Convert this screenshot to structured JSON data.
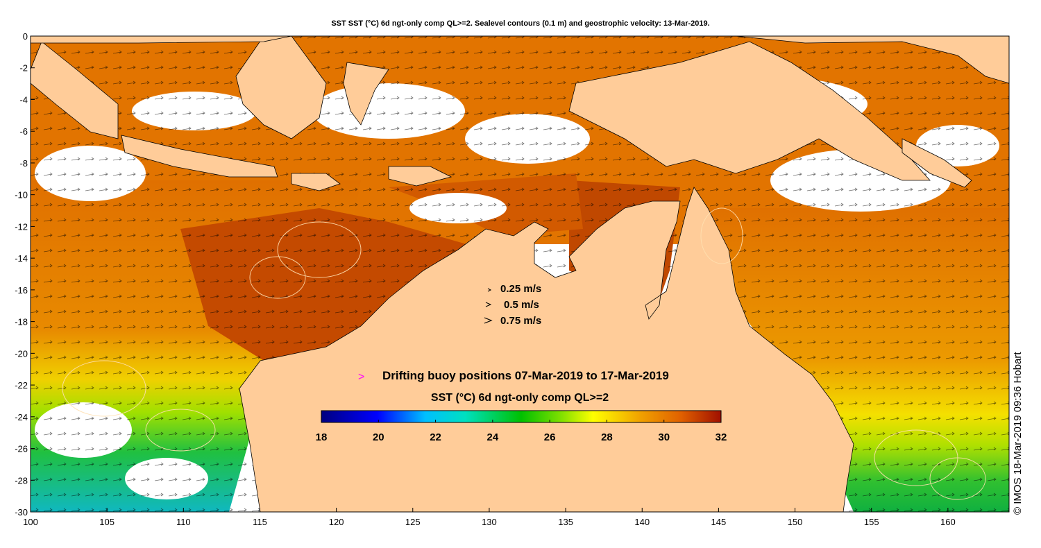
{
  "title": "SST SST (°C) 6d ngt-only comp QL>=2. Sealevel contours (0.1 m) and geostrophic velocity: 13-Mar-2019.",
  "axes": {
    "x_ticks": [
      "100",
      "105",
      "110",
      "115",
      "120",
      "125",
      "130",
      "135",
      "140",
      "145",
      "150",
      "155",
      "160"
    ],
    "y_ticks": [
      "0",
      "-2",
      "-4",
      "-6",
      "-8",
      "-10",
      "-12",
      "-14",
      "-16",
      "-18",
      "-20",
      "-22",
      "-24",
      "-26",
      "-28",
      "-30"
    ],
    "lon_range": [
      100,
      164
    ],
    "lat_range": [
      -30,
      0
    ]
  },
  "velocity_legend": [
    {
      "label": "0.25 m/s"
    },
    {
      "label": "0.5 m/s"
    },
    {
      "label": "0.75 m/s"
    }
  ],
  "buoy": {
    "symbol": ">",
    "label": "Drifting buoy positions 07-Mar-2019 to 17-Mar-2019",
    "color": "#ff00ff"
  },
  "colorbar": {
    "title": "SST (°C) 6d ngt-only comp QL>=2",
    "min": 18,
    "max": 32,
    "ticks": [
      "18",
      "20",
      "22",
      "24",
      "26",
      "28",
      "30",
      "32"
    ],
    "colors": [
      "#00007f",
      "#0000ff",
      "#00bfff",
      "#00e0c0",
      "#00c000",
      "#80e000",
      "#ffff00",
      "#f0a000",
      "#e06000",
      "#a01000"
    ]
  },
  "colors": {
    "land": "#ffcc99",
    "no_data": "#ffffff"
  },
  "credit": "© IMOS 18-Mar-2019 09:36 Hobart"
}
